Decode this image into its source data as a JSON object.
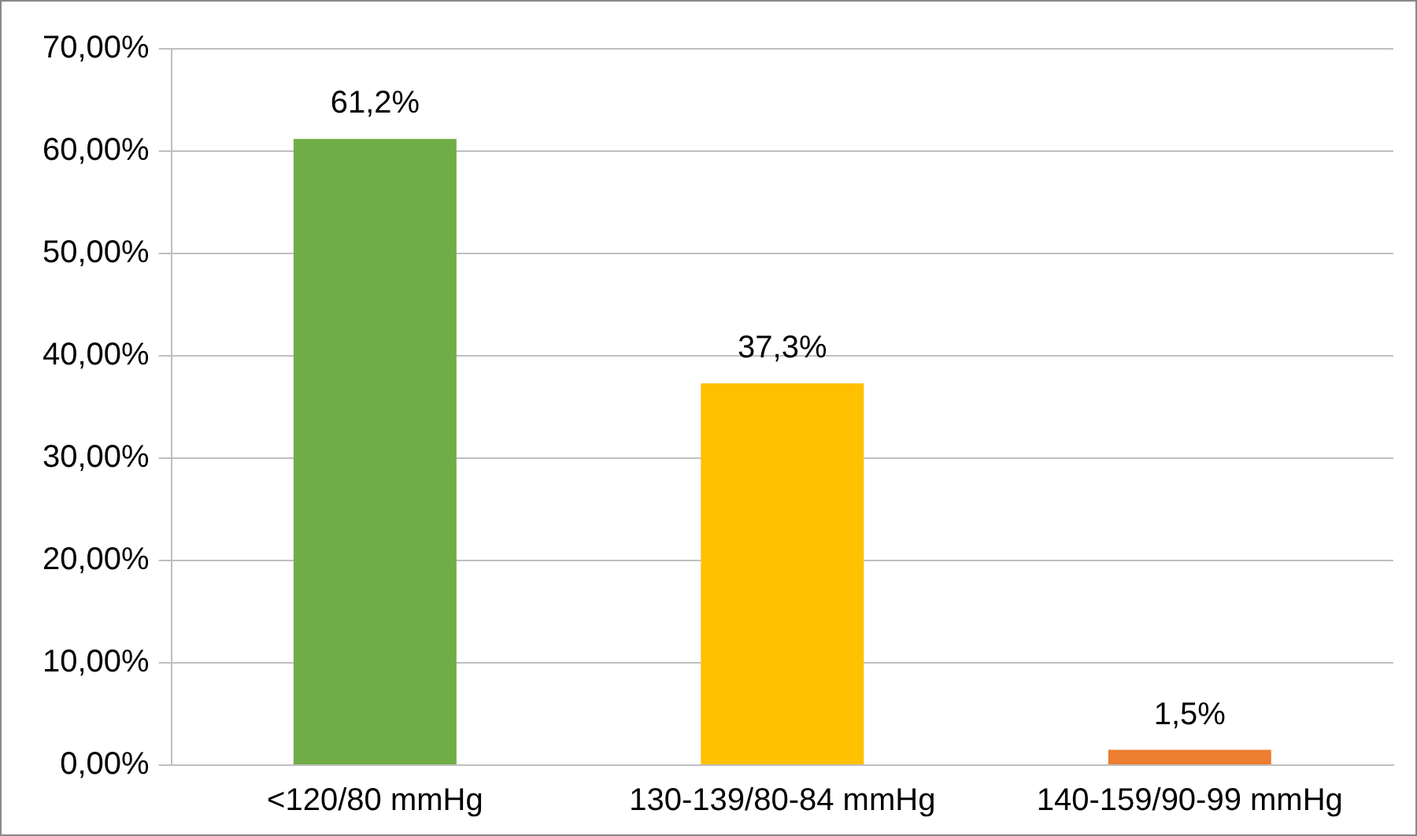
{
  "chart_data": {
    "type": "bar",
    "categories": [
      "<120/80 mmHg",
      "130-139/80-84 mmHg",
      "140-159/90-99 mmHg"
    ],
    "values": [
      61.2,
      37.3,
      1.5
    ],
    "colors": [
      "#70ad47",
      "#ffc000",
      "#ed7d31"
    ],
    "value_labels": [
      "61,2%",
      "37,3%",
      "1,5%"
    ],
    "ylim": [
      0,
      70
    ],
    "yticks": [
      {
        "value": 0,
        "label": "0,00%"
      },
      {
        "value": 10,
        "label": "10,00%"
      },
      {
        "value": 20,
        "label": "20,00%"
      },
      {
        "value": 30,
        "label": "30,00%"
      },
      {
        "value": 40,
        "label": "40,00%"
      },
      {
        "value": 50,
        "label": "50,00%"
      },
      {
        "value": 60,
        "label": "60,00%"
      },
      {
        "value": 70,
        "label": "70,00%"
      }
    ],
    "grid": "y",
    "legend": false
  }
}
